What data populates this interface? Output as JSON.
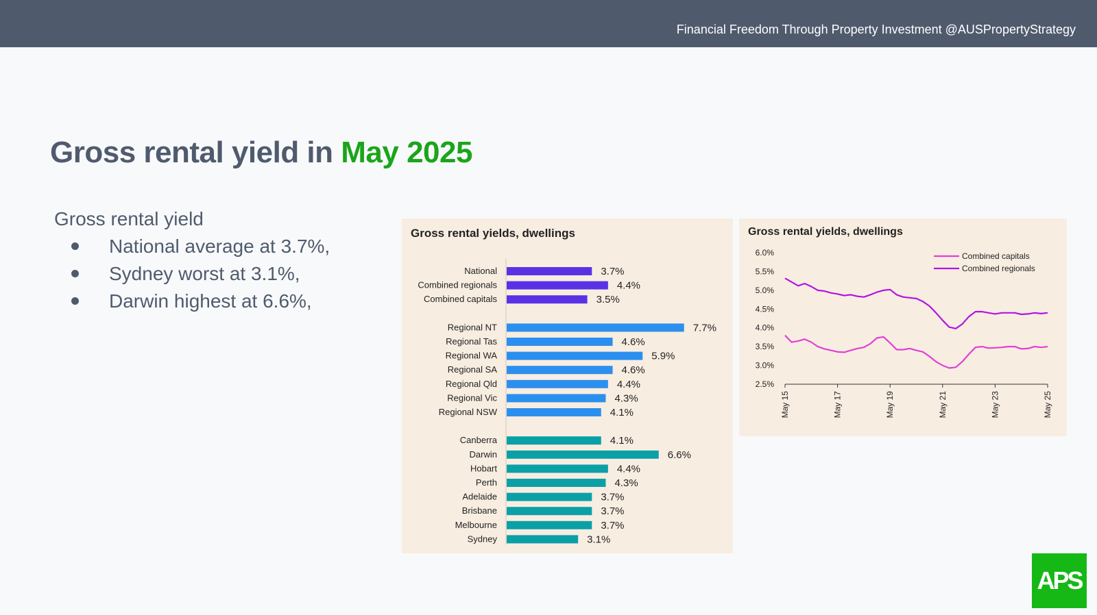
{
  "header": {
    "tagline": "Financial Freedom Through Property Investment @AUSPropertyStrategy"
  },
  "slide": {
    "title_main": "Gross rental yield in ",
    "title_highlight": "May 2025",
    "bullets_heading": "Gross rental yield",
    "bullets": [
      "National average at 3.7%,",
      "Sydney worst at 3.1%,",
      "Darwin highest at 6.6%,"
    ]
  },
  "colors": {
    "accent_green": "#1aa51a",
    "slate": "#4f5b6d",
    "panel_bg": "#f8ede1",
    "bar_purple": "#5a32e6",
    "bar_blue": "#2b8fef",
    "bar_teal": "#0aa0a6",
    "line_capitals": "#e040d6",
    "line_regionals": "#b214e3"
  },
  "logo": {
    "text": "APS"
  },
  "chart_data": [
    {
      "type": "bar",
      "orientation": "horizontal",
      "title": "Gross rental yields, dwellings",
      "unit": "%",
      "groups": [
        {
          "color": "#5a32e6",
          "categories": [
            "National",
            "Combined regionals",
            "Combined capitals"
          ],
          "values": [
            3.7,
            4.4,
            3.5
          ],
          "labels": [
            "3.7%",
            "4.4%",
            "3.5%"
          ]
        },
        {
          "color": "#2b8fef",
          "categories": [
            "Regional NT",
            "Regional Tas",
            "Regional WA",
            "Regional SA",
            "Regional Qld",
            "Regional Vic",
            "Regional NSW"
          ],
          "values": [
            7.7,
            4.6,
            5.9,
            4.6,
            4.4,
            4.3,
            4.1
          ],
          "labels": [
            "7.7%",
            "4.6%",
            "5.9%",
            "4.6%",
            "4.4%",
            "4.3%",
            "4.1%"
          ]
        },
        {
          "color": "#0aa0a6",
          "categories": [
            "Canberra",
            "Darwin",
            "Hobart",
            "Perth",
            "Adelaide",
            "Brisbane",
            "Melbourne",
            "Sydney"
          ],
          "values": [
            4.1,
            6.6,
            4.4,
            4.3,
            3.7,
            3.7,
            3.7,
            3.1
          ],
          "labels": [
            "4.1%",
            "6.6%",
            "4.4%",
            "4.3%",
            "3.7%",
            "3.7%",
            "3.7%",
            "3.1%"
          ]
        }
      ]
    },
    {
      "type": "line",
      "title": "Gross rental yields, dwellings",
      "x_range": [
        "2015-05",
        "2025-05"
      ],
      "x_ticks": [
        "May 15",
        "May 17",
        "May 19",
        "May 21",
        "May 23",
        "May 25"
      ],
      "y_ticks": [
        "6.0%",
        "5.5%",
        "5.0%",
        "4.5%",
        "4.0%",
        "3.5%",
        "3.0%",
        "2.5%"
      ],
      "ylim": [
        2.5,
        6.0
      ],
      "legend_position": "top-right",
      "series": [
        {
          "name": "Combined capitals",
          "color": "#e040d6",
          "x": [
            "2015-05",
            "2015-08",
            "2015-11",
            "2016-02",
            "2016-05",
            "2016-08",
            "2016-11",
            "2017-02",
            "2017-05",
            "2017-08",
            "2017-11",
            "2018-02",
            "2018-05",
            "2018-08",
            "2018-11",
            "2019-02",
            "2019-05",
            "2019-08",
            "2019-11",
            "2020-02",
            "2020-05",
            "2020-08",
            "2020-11",
            "2021-02",
            "2021-05",
            "2021-08",
            "2021-11",
            "2022-02",
            "2022-05",
            "2022-08",
            "2022-11",
            "2023-02",
            "2023-05",
            "2023-08",
            "2023-11",
            "2024-02",
            "2024-05",
            "2024-08",
            "2024-11",
            "2025-02",
            "2025-05"
          ],
          "values": [
            3.8,
            3.62,
            3.65,
            3.7,
            3.62,
            3.5,
            3.44,
            3.4,
            3.36,
            3.35,
            3.4,
            3.45,
            3.48,
            3.58,
            3.73,
            3.76,
            3.6,
            3.42,
            3.42,
            3.45,
            3.4,
            3.36,
            3.24,
            3.1,
            3.0,
            2.93,
            2.95,
            3.1,
            3.3,
            3.48,
            3.5,
            3.46,
            3.47,
            3.48,
            3.5,
            3.5,
            3.44,
            3.45,
            3.5,
            3.48,
            3.5
          ]
        },
        {
          "name": "Combined regionals",
          "color": "#b214e3",
          "x": [
            "2015-05",
            "2015-08",
            "2015-11",
            "2016-02",
            "2016-05",
            "2016-08",
            "2016-11",
            "2017-02",
            "2017-05",
            "2017-08",
            "2017-11",
            "2018-02",
            "2018-05",
            "2018-08",
            "2018-11",
            "2019-02",
            "2019-05",
            "2019-08",
            "2019-11",
            "2020-02",
            "2020-05",
            "2020-08",
            "2020-11",
            "2021-02",
            "2021-05",
            "2021-08",
            "2021-11",
            "2022-02",
            "2022-05",
            "2022-08",
            "2022-11",
            "2023-02",
            "2023-05",
            "2023-08",
            "2023-11",
            "2024-02",
            "2024-05",
            "2024-08",
            "2024-11",
            "2025-02",
            "2025-05"
          ],
          "values": [
            5.32,
            5.22,
            5.12,
            5.18,
            5.1,
            5.0,
            4.98,
            4.93,
            4.9,
            4.86,
            4.88,
            4.84,
            4.82,
            4.88,
            4.95,
            5.0,
            5.02,
            4.88,
            4.82,
            4.8,
            4.78,
            4.7,
            4.58,
            4.4,
            4.2,
            4.02,
            3.98,
            4.1,
            4.3,
            4.43,
            4.43,
            4.4,
            4.37,
            4.4,
            4.4,
            4.4,
            4.36,
            4.37,
            4.4,
            4.38,
            4.4
          ]
        }
      ]
    }
  ]
}
